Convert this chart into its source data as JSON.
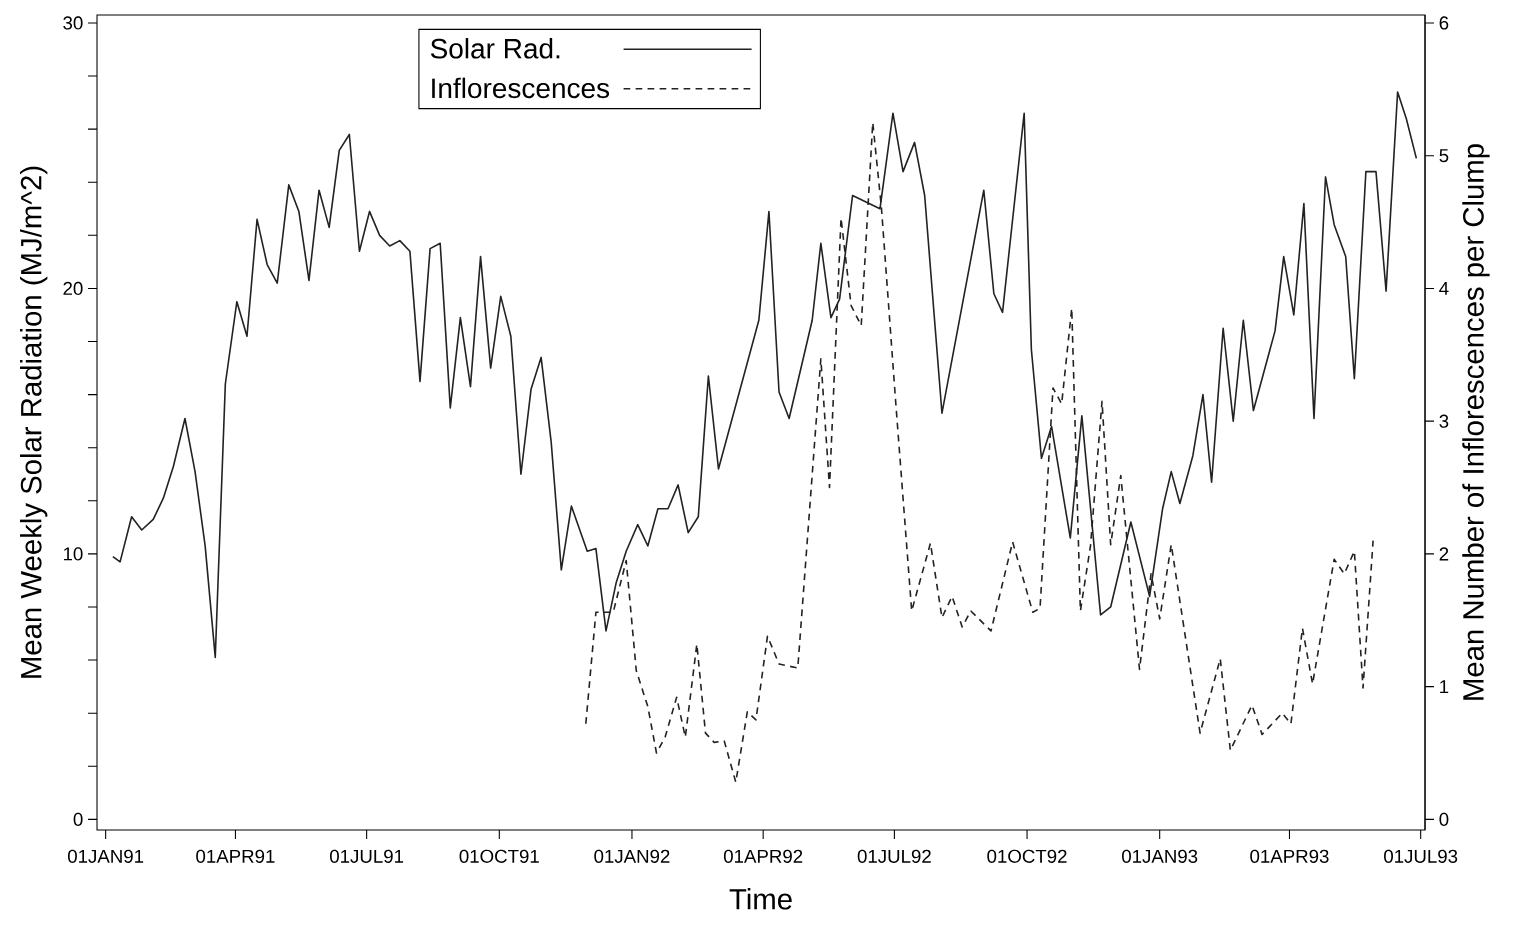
{
  "chart_data": {
    "type": "line",
    "xlabel": "Time",
    "ylabel": "Mean Weekly Solar Radiation (MJ/m^2)",
    "y2label": "Mean Number of Inflorescences per Clump",
    "xlim": [
      "1990-12-26",
      "1993-07-04"
    ],
    "xticks": [
      {
        "value": "1991-01-01",
        "label": "01JAN91"
      },
      {
        "value": "1991-04-01",
        "label": "01APR91"
      },
      {
        "value": "1991-07-01",
        "label": "01JUL91"
      },
      {
        "value": "1991-10-01",
        "label": "01OCT91"
      },
      {
        "value": "1992-01-01",
        "label": "01JAN92"
      },
      {
        "value": "1992-04-01",
        "label": "01APR92"
      },
      {
        "value": "1992-07-01",
        "label": "01JUL92"
      },
      {
        "value": "1992-10-01",
        "label": "01OCT92"
      },
      {
        "value": "1993-01-01",
        "label": "01JAN93"
      },
      {
        "value": "1993-04-01",
        "label": "01APR93"
      },
      {
        "value": "1993-07-01",
        "label": "01JUL93"
      }
    ],
    "ylim": [
      -0.4,
      30.3
    ],
    "yticks": [
      0,
      {
        "value": 2,
        "label": null
      },
      {
        "value": 4,
        "label": null
      },
      {
        "value": 6,
        "label": null
      },
      {
        "value": 8,
        "label": null
      },
      10,
      {
        "value": 12,
        "label": null
      },
      {
        "value": 14,
        "label": null
      },
      {
        "value": 16,
        "label": null
      },
      {
        "value": 18,
        "label": null
      },
      20,
      {
        "value": 22,
        "label": null
      },
      {
        "value": 24,
        "label": null
      },
      {
        "value": 26,
        "label": null
      },
      {
        "value": 28,
        "label": null
      },
      30
    ],
    "y2lim": [
      -0.08,
      6.06
    ],
    "y2ticks": [
      0,
      1,
      2,
      3,
      4,
      5,
      6
    ],
    "grid": false,
    "legend": "top",
    "marker": "none",
    "series": [
      {
        "name": "Solar Rad.",
        "color": "#222222",
        "line_style": "solid",
        "axis": "y",
        "x": [
          "1991-01-06",
          "1991-01-11",
          "1991-01-19",
          "1991-01-26",
          "1991-02-03",
          "1991-02-10",
          "1991-02-17",
          "1991-02-25",
          "1991-03-04",
          "1991-03-11",
          "1991-03-18",
          "1991-03-25",
          "1991-04-02",
          "1991-04-09",
          "1991-04-16",
          "1991-04-23",
          "1991-04-30",
          "1991-05-08",
          "1991-05-15",
          "1991-05-22",
          "1991-05-29",
          "1991-06-05",
          "1991-06-12",
          "1991-06-19",
          "1991-06-26",
          "1991-07-03",
          "1991-07-10",
          "1991-07-17",
          "1991-07-24",
          "1991-07-31",
          "1991-08-07",
          "1991-08-14",
          "1991-08-21",
          "1991-08-28",
          "1991-09-04",
          "1991-09-11",
          "1991-09-18",
          "1991-09-25",
          "1991-10-02",
          "1991-10-09",
          "1991-10-16",
          "1991-10-23",
          "1991-10-30",
          "1991-11-06",
          "1991-11-13",
          "1991-11-20",
          "1991-12-01",
          "1991-12-07",
          "1991-12-14",
          "1991-12-21",
          "1991-12-28",
          "1992-01-05",
          "1992-01-12",
          "1992-01-19",
          "1992-01-26",
          "1992-02-02",
          "1992-02-09",
          "1992-02-16",
          "1992-02-23",
          "1992-03-01",
          "1992-03-29",
          "1992-04-05",
          "1992-04-12",
          "1992-04-19",
          "1992-05-05",
          "1992-05-11",
          "1992-05-18",
          "1992-05-24",
          "1992-06-02",
          "1992-06-21",
          "1992-06-30",
          "1992-07-07",
          "1992-07-15",
          "1992-07-22",
          "1992-08-03",
          "1992-09-01",
          "1992-09-08",
          "1992-09-14",
          "1992-09-29",
          "1992-10-04",
          "1992-10-11",
          "1992-10-18",
          "1992-10-31",
          "1992-11-08",
          "1992-11-21",
          "1992-11-28",
          "1992-12-12",
          "1992-12-25",
          "1993-01-03",
          "1993-01-09",
          "1993-01-15",
          "1993-01-24",
          "1993-01-31",
          "1993-02-06",
          "1993-02-14",
          "1993-02-21",
          "1993-02-28",
          "1993-03-07",
          "1993-03-22",
          "1993-03-28",
          "1993-04-04",
          "1993-04-11",
          "1993-04-18",
          "1993-04-26",
          "1993-05-02",
          "1993-05-10",
          "1993-05-16",
          "1993-05-24",
          "1993-05-31",
          "1993-06-07",
          "1993-06-15",
          "1993-06-21",
          "1993-06-28"
        ],
        "values": [
          9.9,
          9.7,
          11.4,
          10.9,
          11.3,
          12.1,
          13.3,
          15.1,
          13.1,
          10.3,
          6.1,
          16.4,
          19.5,
          18.2,
          22.6,
          20.9,
          20.2,
          23.9,
          22.9,
          20.3,
          23.7,
          22.3,
          25.2,
          25.8,
          21.4,
          22.9,
          22.0,
          21.6,
          21.8,
          21.4,
          16.5,
          21.5,
          21.7,
          15.5,
          18.9,
          16.3,
          21.2,
          17.0,
          19.7,
          18.2,
          13.0,
          16.2,
          17.4,
          14.2,
          9.4,
          11.8,
          10.1,
          10.2,
          7.1,
          8.9,
          10.1,
          11.1,
          10.3,
          11.7,
          11.7,
          12.6,
          10.8,
          11.4,
          16.7,
          13.2,
          18.8,
          22.9,
          16.1,
          15.1,
          18.8,
          21.7,
          18.9,
          19.6,
          23.5,
          23.0,
          26.6,
          24.4,
          25.5,
          23.5,
          15.3,
          23.7,
          19.8,
          19.1,
          26.6,
          17.7,
          13.6,
          14.8,
          10.6,
          15.2,
          7.7,
          8.0,
          11.2,
          8.4,
          11.7,
          13.1,
          11.9,
          13.7,
          16.0,
          12.7,
          18.5,
          15.0,
          18.8,
          15.4,
          18.4,
          21.2,
          19.0,
          23.2,
          15.1,
          24.2,
          22.4,
          21.2,
          16.6,
          24.4,
          24.4,
          19.9,
          27.4,
          26.4,
          24.9
        ]
      },
      {
        "name": "Inflorescences",
        "color": "#222222",
        "line_style": "dashed",
        "axis": "y2",
        "x": [
          "1991-11-30",
          "1991-12-07",
          "1991-12-19",
          "1991-12-28",
          "1992-01-04",
          "1992-01-12",
          "1992-01-18",
          "1992-01-24",
          "1992-02-01",
          "1992-02-07",
          "1992-02-15",
          "1992-02-21",
          "1992-02-27",
          "1992-03-05",
          "1992-03-13",
          "1992-03-21",
          "1992-03-27",
          "1992-04-04",
          "1992-04-12",
          "1992-04-25",
          "1992-05-11",
          "1992-05-17",
          "1992-05-25",
          "1992-06-01",
          "1992-06-08",
          "1992-06-16",
          "1992-06-22",
          "1992-07-02",
          "1992-07-13",
          "1992-07-26",
          "1992-08-03",
          "1992-08-10",
          "1992-08-17",
          "1992-08-23",
          "1992-09-06",
          "1992-09-21",
          "1992-10-05",
          "1992-10-10",
          "1992-10-19",
          "1992-10-25",
          "1992-11-01",
          "1992-11-07",
          "1992-11-14",
          "1992-11-22",
          "1992-11-28",
          "1992-12-05",
          "1992-12-18",
          "1992-12-26",
          "1993-01-01",
          "1993-01-09",
          "1993-01-29",
          "1993-02-12",
          "1993-02-19",
          "1993-03-06",
          "1993-03-13",
          "1993-03-27",
          "1993-04-02",
          "1993-04-10",
          "1993-04-17",
          "1993-05-02",
          "1993-05-09",
          "1993-05-16",
          "1993-05-22",
          "1993-05-29"
        ],
        "values": [
          0.72,
          1.56,
          1.56,
          1.95,
          1.12,
          0.85,
          0.5,
          0.62,
          0.92,
          0.62,
          1.32,
          0.65,
          0.58,
          0.59,
          0.28,
          0.81,
          0.75,
          1.38,
          1.17,
          1.14,
          3.47,
          2.5,
          4.53,
          3.87,
          3.72,
          5.25,
          4.61,
          3.13,
          1.57,
          2.08,
          1.52,
          1.68,
          1.45,
          1.57,
          1.42,
          2.09,
          1.56,
          1.59,
          3.25,
          3.13,
          3.85,
          1.57,
          2.06,
          3.15,
          2.07,
          2.59,
          1.13,
          1.85,
          1.51,
          2.07,
          0.65,
          1.21,
          0.52,
          0.86,
          0.64,
          0.8,
          0.72,
          1.44,
          1.02,
          1.96,
          1.85,
          2.02,
          0.99,
          2.1
        ]
      }
    ]
  }
}
